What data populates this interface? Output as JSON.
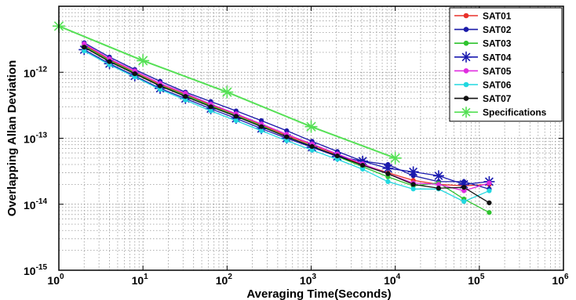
{
  "chart_data": {
    "type": "line",
    "xlabel": "Averaging Time(Seconds)",
    "ylabel": "Overlapping Allan Deviation",
    "xscale": "log",
    "yscale": "log",
    "xlim": [
      1,
      1000000
    ],
    "ylim": [
      1e-15,
      1e-11
    ],
    "grid": true,
    "grid_style": "dotted, major and minor",
    "legend_position": "top-right",
    "x_ticks": [
      {
        "base": "10",
        "exp": "0"
      },
      {
        "base": "10",
        "exp": "1"
      },
      {
        "base": "10",
        "exp": "2"
      },
      {
        "base": "10",
        "exp": "3"
      },
      {
        "base": "10",
        "exp": "4"
      },
      {
        "base": "10",
        "exp": "5"
      },
      {
        "base": "10",
        "exp": "6"
      }
    ],
    "y_ticks": [
      {
        "base": "10",
        "exp": "-15"
      },
      {
        "base": "10",
        "exp": "-14"
      },
      {
        "base": "10",
        "exp": "-13"
      },
      {
        "base": "10",
        "exp": "-12"
      }
    ],
    "series": [
      {
        "name": "SAT01",
        "color": "#e8312a",
        "marker": "dot",
        "x": [
          2,
          4,
          8,
          16,
          32,
          64,
          128,
          256,
          512,
          1024,
          2048,
          4096,
          8192,
          16384,
          32768,
          65536,
          131072
        ],
        "y": [
          2.6e-12,
          1.55e-12,
          1e-12,
          6.5e-13,
          4.6e-13,
          3.2e-13,
          2.3e-13,
          1.6e-13,
          1.1e-13,
          8e-14,
          5.6e-14,
          4e-14,
          3e-14,
          2.3e-14,
          2e-14,
          1.9e-14,
          2e-14
        ]
      },
      {
        "name": "SAT02",
        "color": "#1a1aa8",
        "marker": "dot",
        "x": [
          2,
          4,
          8,
          16,
          32,
          64,
          128,
          256,
          512,
          1024,
          2048,
          4096,
          8192,
          16384,
          32768,
          65536,
          131072
        ],
        "y": [
          2.8e-12,
          1.7e-12,
          1.1e-12,
          7.3e-13,
          5e-13,
          3.6e-13,
          2.6e-13,
          1.85e-13,
          1.3e-13,
          9e-14,
          6.3e-14,
          4.5e-14,
          4e-14,
          2.7e-14,
          2.2e-14,
          2.2e-14,
          1.7e-14
        ]
      },
      {
        "name": "SAT03",
        "color": "#2fc32f",
        "marker": "dot",
        "x": [
          2,
          4,
          8,
          16,
          32,
          64,
          128,
          256,
          512,
          1024,
          2048,
          4096,
          8192,
          16384,
          32768,
          65536,
          131072
        ],
        "y": [
          2.5e-12,
          1.5e-12,
          9.8e-13,
          6.3e-13,
          4.5e-13,
          3.1e-13,
          2.2e-13,
          1.55e-13,
          1.05e-13,
          7.6e-14,
          5.3e-14,
          3.7e-14,
          2.6e-14,
          1.9e-14,
          2.1e-14,
          1.2e-14,
          7.5e-15
        ]
      },
      {
        "name": "SAT04",
        "color": "#1a1ab0",
        "marker": "star",
        "x": [
          2,
          4,
          8,
          16,
          32,
          64,
          128,
          256,
          512,
          1024,
          2048,
          4096,
          8192,
          16384,
          32768,
          65536,
          131072
        ],
        "y": [
          2.2e-12,
          1.35e-12,
          8.8e-13,
          5.7e-13,
          4e-13,
          2.8e-13,
          2e-13,
          1.4e-13,
          1e-13,
          7.3e-14,
          5.3e-14,
          4.5e-14,
          3.5e-14,
          3.1e-14,
          2.7e-14,
          2e-14,
          2.2e-14
        ]
      },
      {
        "name": "SAT05",
        "color": "#e02ce0",
        "marker": "dot",
        "x": [
          2,
          4,
          8,
          16,
          32,
          64,
          128,
          256,
          512,
          1024,
          2048,
          4096,
          8192,
          16384,
          32768,
          65536,
          131072
        ],
        "y": [
          2.7e-12,
          1.6e-12,
          1.05e-12,
          6.8e-13,
          4.8e-13,
          3.3e-13,
          2.35e-13,
          1.65e-13,
          1.15e-13,
          8.2e-14,
          5.8e-14,
          4.1e-14,
          2.9e-14,
          2.1e-14,
          2e-14,
          1.6e-14,
          2.1e-14
        ]
      },
      {
        "name": "SAT06",
        "color": "#22d8e0",
        "marker": "dot",
        "x": [
          2,
          4,
          8,
          16,
          32,
          64,
          128,
          256,
          512,
          1024,
          2048,
          4096,
          8192,
          16384,
          32768,
          65536,
          131072
        ],
        "y": [
          2.1e-12,
          1.3e-12,
          8.5e-13,
          5.5e-13,
          3.8e-13,
          2.6e-13,
          1.85e-13,
          1.3e-13,
          9.2e-14,
          6.6e-14,
          4.8e-14,
          3.4e-14,
          2.2e-14,
          1.7e-14,
          1.7e-14,
          1.1e-14,
          1.6e-14
        ]
      },
      {
        "name": "SAT07",
        "color": "#111111",
        "marker": "dot",
        "x": [
          2,
          4,
          8,
          16,
          32,
          64,
          128,
          256,
          512,
          1024,
          2048,
          4096,
          8192,
          16384,
          32768,
          65536,
          131072
        ],
        "y": [
          2.4e-12,
          1.45e-12,
          9.5e-13,
          6.2e-13,
          4.3e-13,
          3e-13,
          2.15e-13,
          1.5e-13,
          1.05e-13,
          7.5e-14,
          5.4e-14,
          3.9e-14,
          2.9e-14,
          2e-14,
          1.75e-14,
          1.8e-14,
          1.05e-14
        ]
      },
      {
        "name": "Specifications",
        "color": "#55e055",
        "marker": "star",
        "x": [
          1,
          10,
          100,
          1000,
          10000
        ],
        "y": [
          5e-12,
          1.5e-12,
          5e-13,
          1.5e-13,
          5e-14
        ]
      }
    ]
  }
}
